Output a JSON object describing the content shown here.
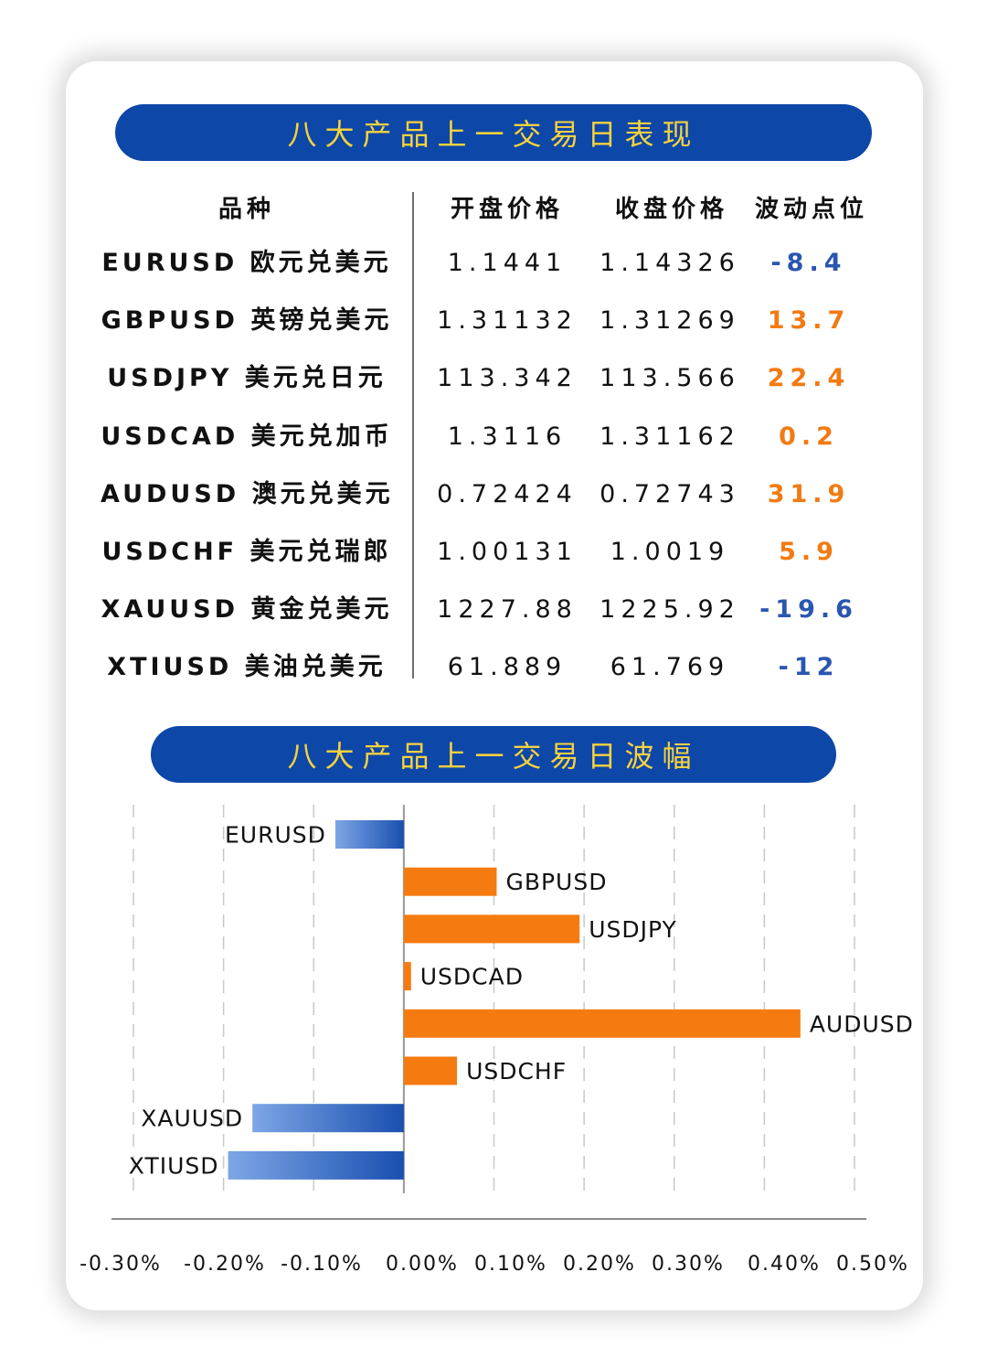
{
  "table": {
    "title": "八大产品上一交易日表现",
    "headers": [
      "品种",
      "开盘价格",
      "收盘价格",
      "波动点位"
    ],
    "rows": [
      {
        "name": "EURUSD 欧元兑美元",
        "open": "1.1441",
        "close": "1.14326",
        "change": "-8.4",
        "color": "#2a56b0"
      },
      {
        "name": "GBPUSD 英镑兑美元",
        "open": "1.31132",
        "close": "1.31269",
        "change": "13.7",
        "color": "#f27a12"
      },
      {
        "name": "USDJPY 美元兑日元",
        "open": "113.342",
        "close": "113.566",
        "change": "22.4",
        "color": "#f27a12"
      },
      {
        "name": "USDCAD 美元兑加币",
        "open": "1.3116",
        "close": "1.31162",
        "change": "0.2",
        "color": "#f27a12"
      },
      {
        "name": "AUDUSD 澳元兑美元",
        "open": "0.72424",
        "close": "0.72743",
        "change": "31.9",
        "color": "#f27a12"
      },
      {
        "name": "USDCHF 美元兑瑞郎",
        "open": "1.00131",
        "close": "1.0019",
        "change": "5.9",
        "color": "#f27a12"
      },
      {
        "name": "XAUUSD 黄金兑美元",
        "open": "1227.88",
        "close": "1225.92",
        "change": "-19.6",
        "color": "#2a56b0"
      },
      {
        "name": "XTIUSD 美油兑美元",
        "open": "61.889",
        "close": "61.769",
        "change": "-12",
        "color": "#2a56b0"
      }
    ]
  },
  "chart_data": {
    "type": "bar",
    "orientation": "horizontal",
    "title": "八大产品上一交易日波幅",
    "categories": [
      "EURUSD",
      "GBPUSD",
      "USDJPY",
      "USDCAD",
      "AUDUSD",
      "USDCHF",
      "XAUUSD",
      "XTIUSD"
    ],
    "values": [
      -0.076,
      0.103,
      0.195,
      0.008,
      0.44,
      0.059,
      -0.168,
      -0.195
    ],
    "unit": "%",
    "xlim": [
      -0.3,
      0.5
    ],
    "ticks": [
      "-0.30%",
      "-0.20%",
      "-0.10%",
      "0.00%",
      "0.10%",
      "0.20%",
      "0.30%",
      "0.40%",
      "0.50%"
    ],
    "grid": true,
    "colors": {
      "positive": "#f57a0f",
      "negative": "#1a4fb0",
      "negative_light": "#7ea6e6"
    }
  }
}
